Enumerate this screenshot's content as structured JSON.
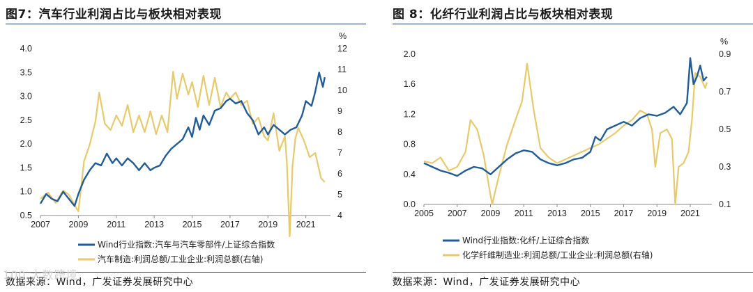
{
  "figures": [
    {
      "title": "图7：汽车行业利润占比与板块相对表现",
      "source": "数据来源：Wind，广发证券发展研究中心"
    },
    {
      "title": "图 8：化纤行业利润占比与板块相对表现",
      "source": "数据来源：Wind，广发证券发展研究中心"
    }
  ],
  "watermark": "100 大数跨境",
  "chart_data": [
    {
      "type": "line",
      "colors": {
        "left_series": "#1f5c99",
        "right_series": "#e8c96b"
      },
      "x_ticks": [
        "2007",
        "2009",
        "2011",
        "2013",
        "2015",
        "2017",
        "2019",
        "2021"
      ],
      "xlim": [
        2007,
        2022.3
      ],
      "y_left": {
        "lim": [
          0.5,
          4.0
        ],
        "ticks": [
          "0.5",
          "1.0",
          "1.5",
          "2.0",
          "2.5",
          "3.0",
          "3.5",
          "4.0"
        ]
      },
      "y_right": {
        "lim": [
          4,
          12
        ],
        "ticks": [
          "4",
          "5",
          "6",
          "7",
          "8",
          "9",
          "10",
          "11",
          "12"
        ],
        "unit": "%"
      },
      "series": [
        {
          "name": "Wind行业指数:汽车与汽车零部件/上证综合指数",
          "axis": "left",
          "x": [
            2007.0,
            2007.3,
            2007.6,
            2007.9,
            2008.2,
            2008.5,
            2008.8,
            2009.0,
            2009.3,
            2009.6,
            2009.9,
            2010.2,
            2010.5,
            2010.8,
            2011.0,
            2011.3,
            2011.6,
            2011.9,
            2012.2,
            2012.5,
            2012.8,
            2013.0,
            2013.3,
            2013.6,
            2013.9,
            2014.2,
            2014.5,
            2014.8,
            2015.0,
            2015.2,
            2015.4,
            2015.6,
            2015.9,
            2016.2,
            2016.5,
            2016.8,
            2017.0,
            2017.3,
            2017.6,
            2017.9,
            2018.2,
            2018.5,
            2018.8,
            2019.0,
            2019.3,
            2019.6,
            2019.9,
            2020.2,
            2020.5,
            2020.8,
            2021.0,
            2021.3,
            2021.5,
            2021.7,
            2021.9,
            2022.0
          ],
          "values": [
            0.75,
            0.95,
            0.85,
            0.8,
            1.0,
            0.85,
            0.7,
            0.95,
            1.25,
            1.45,
            1.6,
            1.55,
            1.8,
            1.6,
            1.7,
            1.55,
            1.7,
            1.6,
            1.45,
            1.6,
            1.45,
            1.5,
            1.55,
            1.75,
            1.9,
            2.0,
            2.1,
            2.35,
            2.15,
            2.55,
            2.3,
            2.6,
            2.4,
            2.7,
            2.75,
            2.9,
            2.95,
            2.85,
            2.9,
            2.65,
            2.5,
            2.2,
            2.35,
            2.2,
            2.4,
            2.3,
            2.2,
            2.3,
            2.35,
            2.6,
            2.9,
            2.8,
            3.1,
            3.5,
            3.2,
            3.4
          ]
        },
        {
          "name": "汽车制造:利润总额/工业企业:利润总额(右轴)",
          "axis": "right",
          "x": [
            2007.0,
            2007.4,
            2007.8,
            2008.2,
            2008.5,
            2008.8,
            2009.0,
            2009.3,
            2009.6,
            2009.9,
            2010.1,
            2010.4,
            2010.7,
            2011.0,
            2011.3,
            2011.6,
            2011.9,
            2012.2,
            2012.5,
            2012.8,
            2013.1,
            2013.4,
            2013.7,
            2014.0,
            2014.2,
            2014.5,
            2014.8,
            2015.0,
            2015.3,
            2015.6,
            2015.9,
            2016.2,
            2016.5,
            2016.8,
            2017.0,
            2017.3,
            2017.6,
            2017.9,
            2018.2,
            2018.5,
            2018.8,
            2019.0,
            2019.3,
            2019.6,
            2019.9,
            2020.0,
            2020.15,
            2020.3,
            2020.45,
            2020.6,
            2020.9,
            2021.2,
            2021.5,
            2021.8,
            2022.0
          ],
          "values": [
            4.8,
            5.1,
            4.6,
            5.2,
            5.0,
            4.5,
            4.2,
            6.6,
            7.4,
            8.5,
            9.9,
            8.4,
            8.1,
            8.8,
            8.3,
            9.3,
            8.0,
            8.8,
            8.0,
            9.0,
            7.9,
            8.8,
            8.0,
            10.9,
            9.6,
            10.8,
            9.8,
            10.4,
            9.2,
            10.7,
            9.3,
            10.6,
            9.2,
            9.9,
            9.6,
            9.9,
            9.3,
            9.5,
            8.4,
            8.7,
            7.8,
            7.6,
            8.9,
            7.1,
            7.8,
            6.5,
            3.0,
            6.4,
            7.7,
            8.2,
            7.6,
            6.8,
            7.0,
            5.8,
            5.6
          ]
        }
      ]
    },
    {
      "type": "line",
      "colors": {
        "left_series": "#1f5c99",
        "right_series": "#e8c96b"
      },
      "x_ticks": [
        "2005",
        "2007",
        "2009",
        "2011",
        "2013",
        "2015",
        "2017",
        "2019",
        "2021"
      ],
      "xlim": [
        2005,
        2022.3
      ],
      "y_left": {
        "lim": [
          0.0,
          2.0
        ],
        "ticks": [
          "0.0",
          "0.4",
          "0.8",
          "1.2",
          "1.6",
          "2.0"
        ]
      },
      "y_right": {
        "lim": [
          0.1,
          0.9
        ],
        "ticks": [
          "0.1",
          "0.3",
          "0.5",
          "0.7",
          "0.9"
        ],
        "unit": "%"
      },
      "series": [
        {
          "name": "Wind行业指数:化纤/上证综合指数",
          "axis": "left",
          "x": [
            2005.0,
            2005.5,
            2006.0,
            2006.5,
            2007.0,
            2007.5,
            2008.0,
            2008.5,
            2009.0,
            2009.5,
            2010.0,
            2010.5,
            2011.0,
            2011.5,
            2012.0,
            2012.5,
            2013.0,
            2013.5,
            2014.0,
            2014.5,
            2015.0,
            2015.3,
            2015.6,
            2016.0,
            2016.5,
            2017.0,
            2017.5,
            2018.0,
            2018.5,
            2019.0,
            2019.5,
            2020.0,
            2020.4,
            2020.8,
            2021.0,
            2021.2,
            2021.4,
            2021.6,
            2021.8,
            2022.0
          ],
          "values": [
            0.55,
            0.5,
            0.45,
            0.42,
            0.38,
            0.45,
            0.5,
            0.48,
            0.4,
            0.5,
            0.6,
            0.68,
            0.72,
            0.7,
            0.6,
            0.55,
            0.52,
            0.55,
            0.6,
            0.62,
            0.7,
            0.9,
            0.85,
            1.0,
            1.05,
            1.1,
            1.05,
            1.15,
            1.2,
            1.18,
            1.22,
            1.3,
            1.2,
            1.35,
            1.95,
            1.6,
            1.7,
            1.85,
            1.65,
            1.7
          ]
        },
        {
          "name": "化学纤维制造业:利润总额/工业企业:利润总额(右轴)",
          "axis": "right",
          "x": [
            2005.0,
            2005.5,
            2006.0,
            2006.5,
            2007.0,
            2007.5,
            2007.8,
            2008.2,
            2008.6,
            2008.9,
            2009.1,
            2009.5,
            2010.0,
            2010.5,
            2010.9,
            2011.2,
            2011.6,
            2012.0,
            2012.5,
            2013.0,
            2013.5,
            2014.0,
            2014.5,
            2015.0,
            2015.5,
            2016.0,
            2016.5,
            2017.0,
            2017.5,
            2018.0,
            2018.4,
            2018.7,
            2018.9,
            2019.2,
            2019.6,
            2019.9,
            2020.1,
            2020.3,
            2020.6,
            2020.9,
            2021.1,
            2021.3,
            2021.6,
            2021.9,
            2022.0
          ],
          "values": [
            0.33,
            0.32,
            0.35,
            0.28,
            0.3,
            0.38,
            0.55,
            0.5,
            0.36,
            0.2,
            0.1,
            0.25,
            0.42,
            0.55,
            0.65,
            0.85,
            0.6,
            0.4,
            0.35,
            0.32,
            0.34,
            0.36,
            0.38,
            0.4,
            0.42,
            0.45,
            0.48,
            0.52,
            0.55,
            0.6,
            0.58,
            0.5,
            0.3,
            0.48,
            0.5,
            0.45,
            0.1,
            0.3,
            0.32,
            0.38,
            0.55,
            0.8,
            0.78,
            0.72,
            0.75
          ]
        }
      ]
    }
  ]
}
